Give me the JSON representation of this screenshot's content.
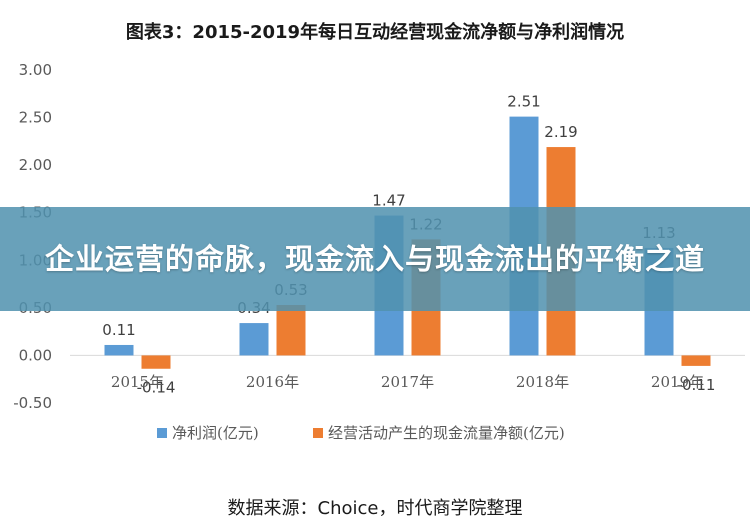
{
  "banner": {
    "text": "企业运营的命脉，现金流入与现金流出的平衡之道"
  },
  "source": "数据来源：Choice，时代商学院整理",
  "chart_data": {
    "type": "bar",
    "title": "图表3：2015-2019年每日互动经营现金流净额与净利润情况",
    "categories": [
      "2015年",
      "2016年",
      "2017年",
      "2018年",
      "2019年"
    ],
    "series": [
      {
        "name": "净利润(亿元)",
        "color": "#5b9bd5",
        "values": [
          0.11,
          0.34,
          1.47,
          2.51,
          1.13
        ],
        "labels": [
          "0.11",
          "0.34",
          "1.47",
          "2.51",
          "1.13"
        ]
      },
      {
        "name": "经营活动产生的现金流量净额(亿元)",
        "color": "#ed7d31",
        "values": [
          -0.14,
          0.53,
          1.22,
          2.19,
          -0.11
        ],
        "labels": [
          "-0.14",
          "0.53",
          "1.22",
          "2.19",
          "-0.11"
        ]
      }
    ],
    "ylim": [
      -0.5,
      3.0
    ],
    "yticks": [
      "3.00",
      "2.50",
      "2.00",
      "1.50",
      "1.00",
      "0.50",
      "0.00",
      "-0.50"
    ],
    "ytick_values": [
      3.0,
      2.5,
      2.0,
      1.5,
      1.0,
      0.5,
      0.0,
      -0.5
    ],
    "grid": false,
    "legend": "bottom"
  }
}
